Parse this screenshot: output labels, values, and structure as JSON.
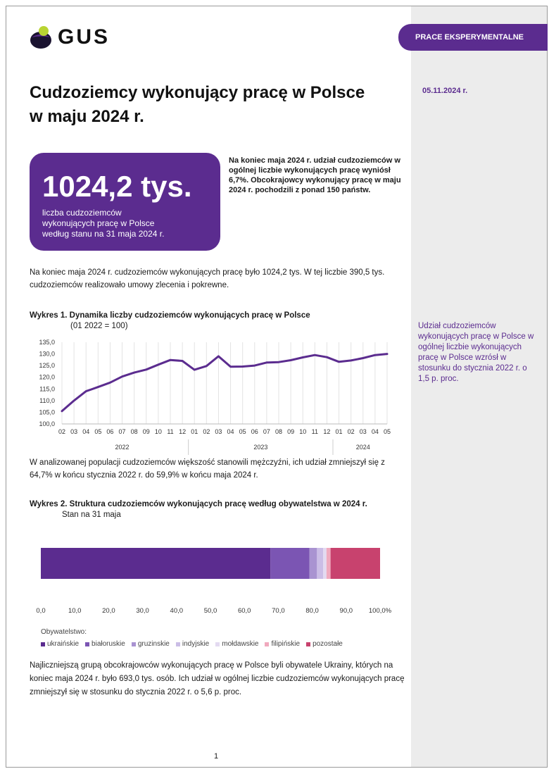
{
  "header": {
    "logo_text": "GUS",
    "tag": "PRACE EKSPERYMENTALNE",
    "date": "05.11.2024 r."
  },
  "title": "Cudzoziemcy wykonujący pracę w Polsce w maju 2024 r.",
  "kpi": {
    "value": "1024,2 tys.",
    "caption": "liczba cudzoziemców wykonujących pracę w Polsce według stanu na 31 maja 2024 r."
  },
  "lead": "Na koniec maja 2024 r. udział cudzoziemców w ogólnej liczbie wykonujących pracę wyniósł 6,7%. Obcokrajowcy wykonujący pracę w maju 2024 r. pochodzili z ponad 150 państw.",
  "paragraphs": {
    "p1": "Na koniec maja 2024 r. cudzoziemców wykonujących pracę było 1024,2 tys. W tej liczbie 390,5 tys. cudzoziemców realizowało umowy zlecenia i pokrewne.",
    "p2": "W analizowanej populacji cudzoziemców większość stanowili mężczyźni, ich udział zmniejszył się z 64,7% w końcu stycznia 2022 r. do 59,9% w końcu maja 2024 r.",
    "p3": "Najliczniejszą grupą obcokrajowców wykonujących pracę w Polsce byli obywatele Ukrainy, których na koniec maja 2024 r. było 693,0 tys. osób. Ich udział w ogólnej liczbie cudzoziemców wykonujących pracę zmniejszył się w stosunku do stycznia 2022 r. o 5,6 p. proc."
  },
  "side_note": "Udział cudzoziemców wykonujących pracę w Polsce w ogólnej liczbie wykonujących pracę w Polsce wzrósł w stosunku do stycznia 2022 r. o 1,5 p. proc.",
  "page_number": "1",
  "colors": {
    "accent": "#5b2c8f"
  },
  "chart_data": [
    {
      "type": "line",
      "title": "Wykres 1. Dynamika liczby cudzoziemców wykonujących pracę w Polsce",
      "subtitle": "(01 2022 = 100)",
      "x_months": [
        "02",
        "03",
        "04",
        "05",
        "06",
        "07",
        "08",
        "09",
        "10",
        "11",
        "12",
        "01",
        "02",
        "03",
        "04",
        "05",
        "06",
        "07",
        "08",
        "09",
        "10",
        "11",
        "12",
        "01",
        "02",
        "03",
        "04",
        "05"
      ],
      "x_years": [
        {
          "label": "2022",
          "from": 0,
          "to": 10
        },
        {
          "label": "2023",
          "from": 11,
          "to": 22
        },
        {
          "label": "2024",
          "from": 23,
          "to": 27
        }
      ],
      "ylim": [
        100,
        135
      ],
      "yticks": [
        "100,0",
        "105,0",
        "110,0",
        "115,0",
        "120,0",
        "125,0",
        "130,0",
        "135,0"
      ],
      "grid": "vertical",
      "series": [
        {
          "color": "#5b2c8f",
          "values": [
            105.5,
            110.0,
            114.0,
            115.8,
            117.7,
            120.3,
            122.0,
            123.3,
            125.4,
            127.4,
            127.0,
            123.2,
            124.8,
            129.0,
            124.5,
            124.6,
            125.0,
            126.3,
            126.5,
            127.3,
            128.5,
            129.5,
            128.6,
            126.6,
            127.2,
            128.2,
            129.5,
            130.0
          ]
        }
      ]
    },
    {
      "type": "bar",
      "orientation": "horizontal-stacked",
      "title": "Wykres 2. Struktura cudzoziemców wykonujących pracę według obywatelstwa w 2024 r.",
      "subtitle": "Stan na 31 maja",
      "xlim": [
        0,
        100
      ],
      "xticks": [
        "0,0",
        "10,0",
        "20,0",
        "30,0",
        "40,0",
        "50,0",
        "60,0",
        "70,0",
        "80,0",
        "90,0",
        "100,0%"
      ],
      "legend_title": "Obywatelstwo:",
      "series": [
        {
          "name": "ukraińskie",
          "value": 67.7,
          "color": "#5b2c8f"
        },
        {
          "name": "białoruskie",
          "value": 11.5,
          "color": "#7b55b3"
        },
        {
          "name": "gruzinskie",
          "value": 2.2,
          "color": "#a993d1"
        },
        {
          "name": "indyjskie",
          "value": 1.8,
          "color": "#cbbde6"
        },
        {
          "name": "mołdawskie",
          "value": 1.0,
          "color": "#e3daf1"
        },
        {
          "name": "filipińskie",
          "value": 1.2,
          "color": "#f0a9bd"
        },
        {
          "name": "pozostałe",
          "value": 14.6,
          "color": "#c8426e"
        }
      ]
    }
  ]
}
